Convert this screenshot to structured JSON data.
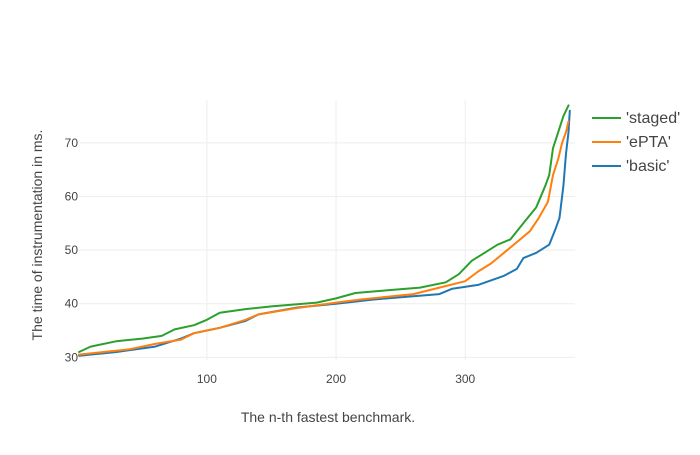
{
  "chart_data": {
    "type": "line",
    "title": "",
    "xlabel": "The n-th fastest benchmark.",
    "ylabel": "The time of instrumentation in ms.",
    "xlim": [
      1,
      385
    ],
    "ylim": [
      29.5,
      78
    ],
    "x_ticks": [
      100,
      200,
      300
    ],
    "y_ticks": [
      30,
      40,
      50,
      60,
      70
    ],
    "grid": true,
    "legend_position": "top-right",
    "series": [
      {
        "name": "'staged'",
        "color": "#2ca02c",
        "points": [
          [
            1,
            31
          ],
          [
            10,
            32
          ],
          [
            30,
            33
          ],
          [
            50,
            33.5
          ],
          [
            65,
            34
          ],
          [
            75,
            35.2
          ],
          [
            90,
            36
          ],
          [
            100,
            37
          ],
          [
            110,
            38.3
          ],
          [
            130,
            39
          ],
          [
            150,
            39.5
          ],
          [
            185,
            40.2
          ],
          [
            200,
            41
          ],
          [
            215,
            42
          ],
          [
            240,
            42.5
          ],
          [
            265,
            43
          ],
          [
            285,
            44
          ],
          [
            295,
            45.5
          ],
          [
            305,
            48
          ],
          [
            315,
            49.5
          ],
          [
            325,
            51
          ],
          [
            335,
            52
          ],
          [
            345,
            55
          ],
          [
            355,
            58
          ],
          [
            362,
            62
          ],
          [
            365,
            64
          ],
          [
            368,
            69
          ],
          [
            372,
            72
          ],
          [
            376,
            75
          ],
          [
            380,
            77
          ]
        ]
      },
      {
        "name": "'ePTA'",
        "color": "#ff7f0e",
        "points": [
          [
            1,
            30.5
          ],
          [
            20,
            31
          ],
          [
            40,
            31.5
          ],
          [
            60,
            32.5
          ],
          [
            80,
            33.3
          ],
          [
            90,
            34.5
          ],
          [
            100,
            35
          ],
          [
            110,
            35.5
          ],
          [
            130,
            37
          ],
          [
            140,
            38
          ],
          [
            170,
            39.2
          ],
          [
            200,
            40.2
          ],
          [
            220,
            40.8
          ],
          [
            260,
            41.8
          ],
          [
            280,
            43
          ],
          [
            300,
            44.2
          ],
          [
            310,
            46
          ],
          [
            320,
            47.5
          ],
          [
            330,
            49.5
          ],
          [
            340,
            51.5
          ],
          [
            350,
            53.5
          ],
          [
            357,
            56
          ],
          [
            364,
            59
          ],
          [
            368,
            64
          ],
          [
            372,
            67
          ],
          [
            375,
            70
          ],
          [
            378,
            72
          ],
          [
            380,
            74
          ]
        ]
      },
      {
        "name": "'basic'",
        "color": "#1f77b4",
        "points": [
          [
            1,
            30.3
          ],
          [
            30,
            31
          ],
          [
            60,
            32
          ],
          [
            80,
            33.5
          ],
          [
            90,
            34.5
          ],
          [
            100,
            35
          ],
          [
            110,
            35.5
          ],
          [
            130,
            36.8
          ],
          [
            140,
            38
          ],
          [
            170,
            39.3
          ],
          [
            200,
            40
          ],
          [
            230,
            40.8
          ],
          [
            280,
            41.8
          ],
          [
            290,
            42.8
          ],
          [
            310,
            43.5
          ],
          [
            330,
            45.2
          ],
          [
            340,
            46.5
          ],
          [
            345,
            48.5
          ],
          [
            355,
            49.5
          ],
          [
            365,
            51
          ],
          [
            370,
            54
          ],
          [
            373,
            56
          ],
          [
            376,
            62
          ],
          [
            378,
            68
          ],
          [
            380,
            72
          ],
          [
            381,
            76
          ]
        ]
      }
    ]
  }
}
